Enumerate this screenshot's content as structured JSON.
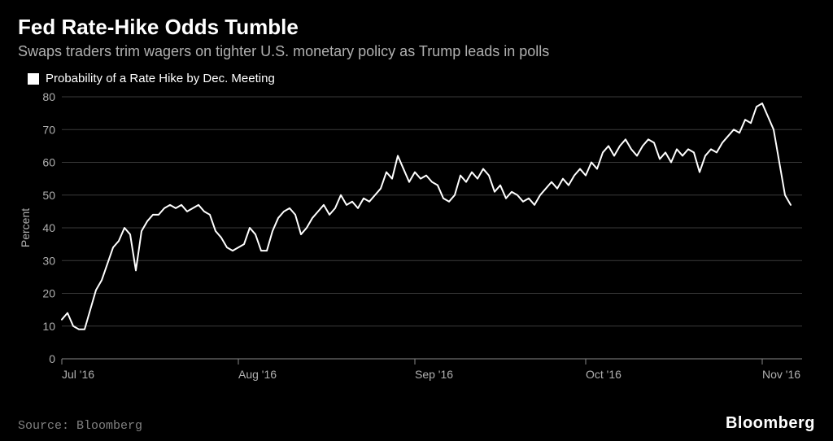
{
  "title": "Fed Rate-Hike Odds Tumble",
  "subtitle": "Swaps traders trim wagers on tighter U.S. monetary policy as Trump leads in polls",
  "legend": {
    "swatch_color": "#ffffff",
    "label": "Probability of a Rate Hike by Dec. Meeting"
  },
  "chart": {
    "type": "line",
    "background_color": "#000000",
    "line_color": "#ffffff",
    "line_width": 2,
    "grid_color": "#3a3a3a",
    "axis_color": "#888888",
    "tick_label_color": "#b0b0b0",
    "tick_fontsize": 14,
    "title_fontsize": 26,
    "subtitle_fontsize": 18,
    "legend_fontsize": 15,
    "ylabel": "Percent",
    "ylabel_fontsize": 14,
    "ylim": [
      0,
      80
    ],
    "ytick_step": 10,
    "yticks": [
      0,
      10,
      20,
      30,
      40,
      50,
      60,
      70,
      80
    ],
    "x_domain": [
      0,
      130
    ],
    "x_ticks": [
      {
        "pos": 0,
        "label": "Jul '16"
      },
      {
        "pos": 31,
        "label": "Aug '16"
      },
      {
        "pos": 62,
        "label": "Sep '16"
      },
      {
        "pos": 92,
        "label": "Oct '16"
      },
      {
        "pos": 123,
        "label": "Nov '16"
      }
    ],
    "series": [
      {
        "name": "rate_hike_prob",
        "color": "#ffffff",
        "data": [
          [
            0,
            12
          ],
          [
            1,
            14
          ],
          [
            2,
            10
          ],
          [
            3,
            9
          ],
          [
            4,
            9
          ],
          [
            5,
            15
          ],
          [
            6,
            21
          ],
          [
            7,
            24
          ],
          [
            8,
            29
          ],
          [
            9,
            34
          ],
          [
            10,
            36
          ],
          [
            11,
            40
          ],
          [
            12,
            38
          ],
          [
            13,
            27
          ],
          [
            14,
            39
          ],
          [
            15,
            42
          ],
          [
            16,
            44
          ],
          [
            17,
            44
          ],
          [
            18,
            46
          ],
          [
            19,
            47
          ],
          [
            20,
            46
          ],
          [
            21,
            47
          ],
          [
            22,
            45
          ],
          [
            23,
            46
          ],
          [
            24,
            47
          ],
          [
            25,
            45
          ],
          [
            26,
            44
          ],
          [
            27,
            39
          ],
          [
            28,
            37
          ],
          [
            29,
            34
          ],
          [
            30,
            33
          ],
          [
            31,
            34
          ],
          [
            32,
            35
          ],
          [
            33,
            40
          ],
          [
            34,
            38
          ],
          [
            35,
            33
          ],
          [
            36,
            33
          ],
          [
            37,
            39
          ],
          [
            38,
            43
          ],
          [
            39,
            45
          ],
          [
            40,
            46
          ],
          [
            41,
            44
          ],
          [
            42,
            38
          ],
          [
            43,
            40
          ],
          [
            44,
            43
          ],
          [
            45,
            45
          ],
          [
            46,
            47
          ],
          [
            47,
            44
          ],
          [
            48,
            46
          ],
          [
            49,
            50
          ],
          [
            50,
            47
          ],
          [
            51,
            48
          ],
          [
            52,
            46
          ],
          [
            53,
            49
          ],
          [
            54,
            48
          ],
          [
            55,
            50
          ],
          [
            56,
            52
          ],
          [
            57,
            57
          ],
          [
            58,
            55
          ],
          [
            59,
            62
          ],
          [
            60,
            58
          ],
          [
            61,
            54
          ],
          [
            62,
            57
          ],
          [
            63,
            55
          ],
          [
            64,
            56
          ],
          [
            65,
            54
          ],
          [
            66,
            53
          ],
          [
            67,
            49
          ],
          [
            68,
            48
          ],
          [
            69,
            50
          ],
          [
            70,
            56
          ],
          [
            71,
            54
          ],
          [
            72,
            57
          ],
          [
            73,
            55
          ],
          [
            74,
            58
          ],
          [
            75,
            56
          ],
          [
            76,
            51
          ],
          [
            77,
            53
          ],
          [
            78,
            49
          ],
          [
            79,
            51
          ],
          [
            80,
            50
          ],
          [
            81,
            48
          ],
          [
            82,
            49
          ],
          [
            83,
            47
          ],
          [
            84,
            50
          ],
          [
            85,
            52
          ],
          [
            86,
            54
          ],
          [
            87,
            52
          ],
          [
            88,
            55
          ],
          [
            89,
            53
          ],
          [
            90,
            56
          ],
          [
            91,
            58
          ],
          [
            92,
            56
          ],
          [
            93,
            60
          ],
          [
            94,
            58
          ],
          [
            95,
            63
          ],
          [
            96,
            65
          ],
          [
            97,
            62
          ],
          [
            98,
            65
          ],
          [
            99,
            67
          ],
          [
            100,
            64
          ],
          [
            101,
            62
          ],
          [
            102,
            65
          ],
          [
            103,
            67
          ],
          [
            104,
            66
          ],
          [
            105,
            61
          ],
          [
            106,
            63
          ],
          [
            107,
            60
          ],
          [
            108,
            64
          ],
          [
            109,
            62
          ],
          [
            110,
            64
          ],
          [
            111,
            63
          ],
          [
            112,
            57
          ],
          [
            113,
            62
          ],
          [
            114,
            64
          ],
          [
            115,
            63
          ],
          [
            116,
            66
          ],
          [
            117,
            68
          ],
          [
            118,
            70
          ],
          [
            119,
            69
          ],
          [
            120,
            73
          ],
          [
            121,
            72
          ],
          [
            122,
            77
          ],
          [
            123,
            78
          ],
          [
            124,
            74
          ],
          [
            125,
            70
          ],
          [
            126,
            60
          ],
          [
            127,
            50
          ],
          [
            128,
            47
          ]
        ]
      }
    ]
  },
  "source": "Source: Bloomberg",
  "brand": "Bloomberg"
}
